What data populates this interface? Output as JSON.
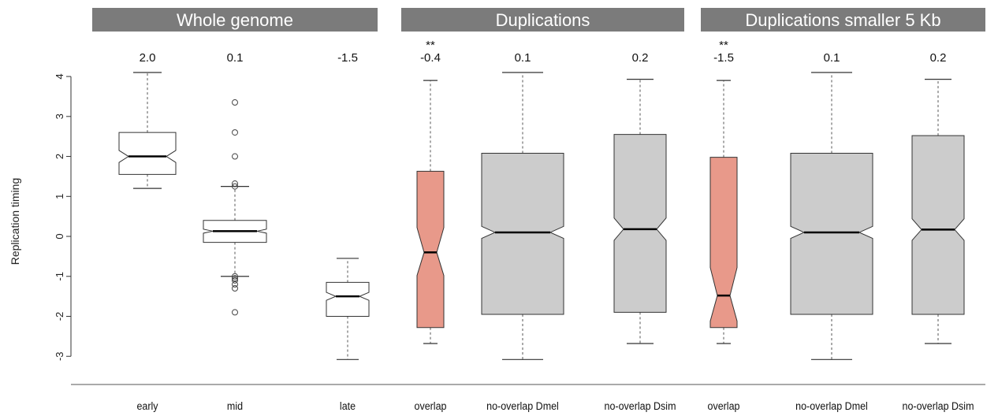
{
  "chart_data": {
    "type": "boxplot",
    "ylabel": "Replication timing",
    "ylim": [
      -3.35,
      4.1
    ],
    "yticks": [
      -3,
      -2,
      -1,
      0,
      1,
      2,
      3,
      4
    ],
    "ytick_labels": [
      "-3",
      "-2",
      "-1",
      "0",
      "1",
      "2",
      "3",
      "4"
    ],
    "groups": [
      {
        "label": "Whole genome",
        "box_indices": [
          0,
          1,
          2
        ]
      },
      {
        "label": "Duplications",
        "box_indices": [
          3,
          4,
          5
        ]
      },
      {
        "label": "Duplications smaller 5 Kb",
        "box_indices": [
          6,
          7,
          8
        ]
      }
    ],
    "boxes": [
      {
        "label": "early",
        "median_label": "2.0",
        "stars": "",
        "whisker_low": 1.2,
        "q1": 1.55,
        "median": 2.0,
        "q3": 2.6,
        "whisker_high": 4.1,
        "notch_low": 1.85,
        "notch_high": 2.15,
        "outliers": [],
        "fill": "#ffffff"
      },
      {
        "label": "mid",
        "median_label": "0.1",
        "stars": "",
        "whisker_low": -1.0,
        "q1": -0.15,
        "median": 0.13,
        "q3": 0.4,
        "whisker_high": 1.25,
        "notch_low": 0.08,
        "notch_high": 0.18,
        "outliers": [
          3.35,
          2.6,
          2.0,
          1.32,
          1.25,
          -1.0,
          -1.05,
          -1.1,
          -1.2,
          -1.3,
          -1.9
        ],
        "fill": "#ffffff"
      },
      {
        "label": "late",
        "median_label": "-1.5",
        "stars": "",
        "whisker_low": -3.08,
        "q1": -2.0,
        "median": -1.5,
        "q3": -1.15,
        "whisker_high": -0.55,
        "notch_low": -1.6,
        "notch_high": -1.4,
        "outliers": [],
        "fill": "#ffffff"
      },
      {
        "label": "overlap",
        "median_label": "-0.4",
        "stars": "**",
        "whisker_low": -2.68,
        "q1": -2.28,
        "median": -0.4,
        "q3": 1.63,
        "whisker_high": 3.9,
        "notch_low": -0.98,
        "notch_high": 0.22,
        "outliers": [],
        "fill": "#e8998a"
      },
      {
        "label": "no-overlap Dmel",
        "median_label": "0.1",
        "stars": "",
        "whisker_low": -3.08,
        "q1": -1.95,
        "median": 0.1,
        "q3": 2.08,
        "whisker_high": 4.1,
        "notch_low": -0.05,
        "notch_high": 0.25,
        "outliers": [],
        "fill": "#cccccc"
      },
      {
        "label": "no-overlap Dsim",
        "median_label": "0.2",
        "stars": "",
        "whisker_low": -2.68,
        "q1": -1.9,
        "median": 0.18,
        "q3": 2.55,
        "whisker_high": 3.93,
        "notch_low": -0.1,
        "notch_high": 0.46,
        "outliers": [],
        "fill": "#cccccc"
      },
      {
        "label": "overlap",
        "median_label": "-1.5",
        "stars": "**",
        "whisker_low": -2.68,
        "q1": -2.28,
        "median": -1.48,
        "q3": 1.98,
        "whisker_high": 3.9,
        "notch_low": -2.12,
        "notch_high": -0.78,
        "outliers": [],
        "fill": "#e8998a"
      },
      {
        "label": "no-overlap Dmel",
        "median_label": "0.1",
        "stars": "",
        "whisker_low": -3.08,
        "q1": -1.95,
        "median": 0.1,
        "q3": 2.08,
        "whisker_high": 4.1,
        "notch_low": -0.05,
        "notch_high": 0.25,
        "outliers": [],
        "fill": "#cccccc"
      },
      {
        "label": "no-overlap Dsim",
        "median_label": "0.2",
        "stars": "",
        "whisker_low": -2.68,
        "q1": -1.95,
        "median": 0.17,
        "q3": 2.52,
        "whisker_high": 3.93,
        "notch_low": -0.1,
        "notch_high": 0.44,
        "outliers": [],
        "fill": "#cccccc"
      }
    ],
    "colors": {
      "header_bg": "#7b7b7b",
      "header_text": "#ffffff",
      "overlap_fill": "#e8998a",
      "no_overlap_fill": "#cccccc",
      "whole_genome_fill": "#ffffff",
      "stroke": "#333333"
    }
  }
}
